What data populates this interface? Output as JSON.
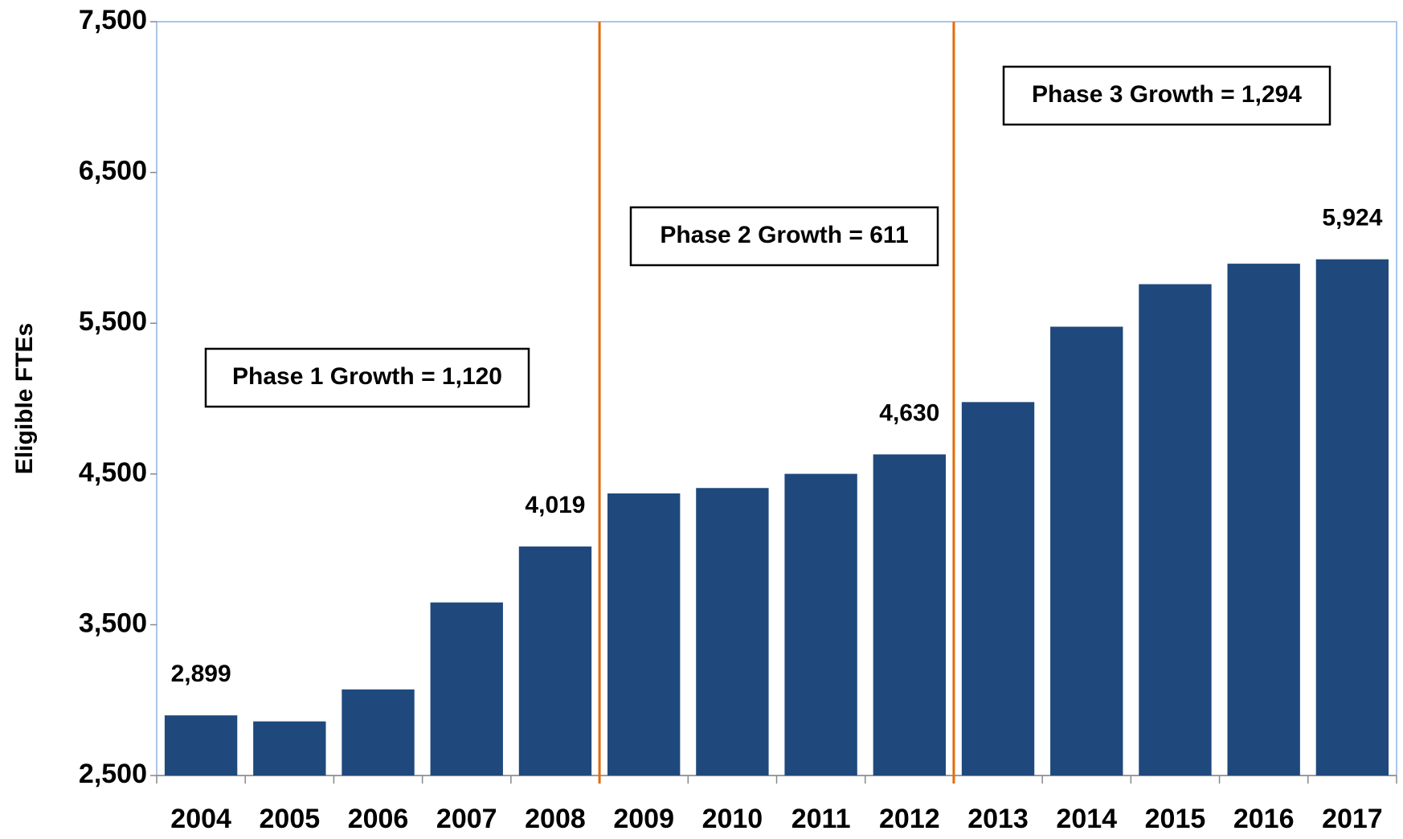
{
  "chart_data": {
    "type": "bar",
    "y_axis_label": "Eligible FTEs",
    "categories": [
      "2004",
      "2005",
      "2006",
      "2007",
      "2008",
      "2009",
      "2010",
      "2011",
      "2012",
      "2013",
      "2014",
      "2015",
      "2016",
      "2017"
    ],
    "values": [
      2899,
      2859,
      3071,
      3648,
      4019,
      4371,
      4407,
      4501,
      4630,
      4977,
      5477,
      5759,
      5895,
      5924
    ],
    "value_labels": [
      "2,899",
      null,
      null,
      null,
      "4,019",
      null,
      null,
      null,
      "4,630",
      null,
      null,
      null,
      null,
      "5,924"
    ],
    "color": "#1f497d",
    "ylim": [
      2500,
      7500
    ],
    "yticks": [
      {
        "value": 2500,
        "label": "2,500"
      },
      {
        "value": 3500,
        "label": "3,500"
      },
      {
        "value": 4500,
        "label": "4,500"
      },
      {
        "value": 5500,
        "label": "5,500"
      },
      {
        "value": 6500,
        "label": "6,500"
      },
      {
        "value": 7500,
        "label": "7,500"
      }
    ],
    "grid": false,
    "annotations": [
      "Phase 1 Growth = 1,120",
      "Phase 2 Growth = 611",
      "Phase 3 Growth = 1,294"
    ]
  }
}
